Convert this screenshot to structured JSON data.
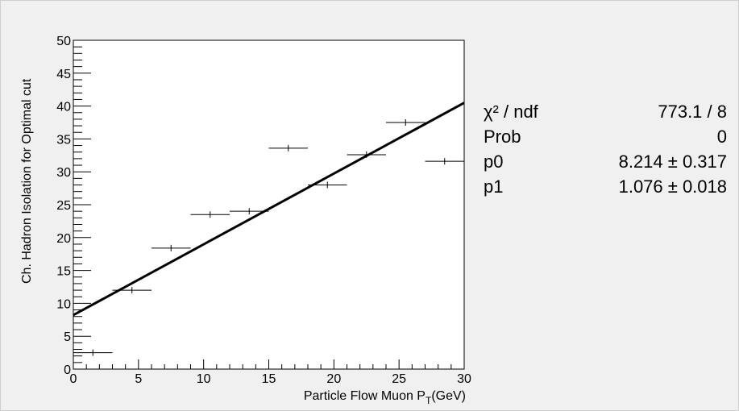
{
  "chart_data": {
    "type": "scatter",
    "xlabel": "Particle Flow Muon P",
    "xlabel_subscript": "T",
    "xlabel_suffix": "(GeV)",
    "ylabel": "Ch. Hadron Isolation for Optimal cut",
    "xlim": [
      0,
      30
    ],
    "ylim": [
      0,
      50
    ],
    "x_ticks": [
      "0",
      "5",
      "10",
      "15",
      "20",
      "25",
      "30"
    ],
    "y_ticks": [
      "0",
      "5",
      "10",
      "15",
      "20",
      "25",
      "30",
      "35",
      "40",
      "45",
      "50"
    ],
    "grid": false,
    "points": [
      {
        "x": 1.5,
        "y": 2.5,
        "xerr": 1.5
      },
      {
        "x": 4.5,
        "y": 12.0,
        "xerr": 1.5
      },
      {
        "x": 7.5,
        "y": 18.4,
        "xerr": 1.5
      },
      {
        "x": 10.5,
        "y": 23.5,
        "xerr": 1.5
      },
      {
        "x": 13.5,
        "y": 24.0,
        "xerr": 1.5
      },
      {
        "x": 16.5,
        "y": 33.6,
        "xerr": 1.5
      },
      {
        "x": 19.5,
        "y": 28.0,
        "xerr": 1.5
      },
      {
        "x": 22.5,
        "y": 32.6,
        "xerr": 1.5
      },
      {
        "x": 25.5,
        "y": 37.5,
        "xerr": 1.5
      },
      {
        "x": 28.5,
        "y": 31.6,
        "xerr": 1.5
      }
    ],
    "fit_line": {
      "p0": 8.214,
      "p1": 1.076,
      "x_range": [
        0,
        30
      ]
    }
  },
  "stats": [
    {
      "name": "χ² / ndf",
      "value": "773.1 / 8"
    },
    {
      "name": "Prob",
      "value": "0"
    },
    {
      "name": "p0",
      "value": "8.214 ± 0.317"
    },
    {
      "name": "p1",
      "value": "1.076 ± 0.018"
    }
  ]
}
